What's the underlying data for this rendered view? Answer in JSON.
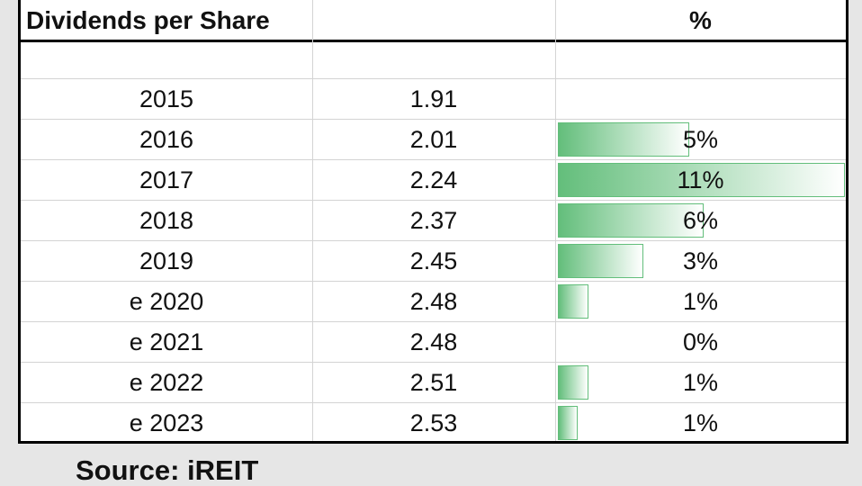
{
  "header": {
    "label": "Dividends per Share",
    "pct": "%"
  },
  "rows": [
    {
      "year": "2015",
      "dps": 1.91
    },
    {
      "year": "2016",
      "dps": 2.01
    },
    {
      "year": "2017",
      "dps": 2.24
    },
    {
      "year": "2018",
      "dps": 2.37
    },
    {
      "year": "2019",
      "dps": 2.45
    },
    {
      "year": "e 2020",
      "dps": 2.48
    },
    {
      "year": "e 2021",
      "dps": 2.48
    },
    {
      "year": "e 2022",
      "dps": 2.51
    },
    {
      "year": "e 2023",
      "dps": 2.53
    }
  ],
  "growth": {
    "values": [
      null,
      5.2,
      11.4,
      5.8,
      3.4,
      1.2,
      0,
      1.2,
      0.8
    ],
    "value_labels": [
      null,
      "5%",
      "11%",
      "6%",
      "3%",
      "1%",
      "0%",
      "1%",
      "1%"
    ],
    "color": "#63be7b"
  },
  "source": "Source: iREIT"
}
